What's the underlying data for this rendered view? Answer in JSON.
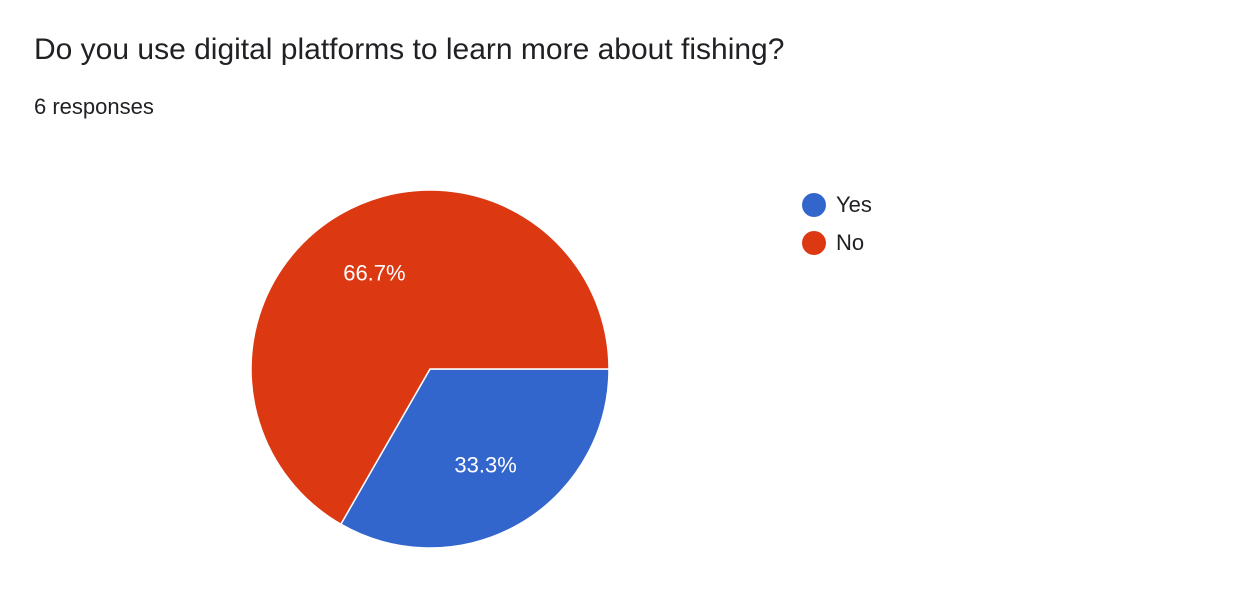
{
  "question": {
    "title": "Do you use digital platforms to learn more about fishing?",
    "responses": "6 responses"
  },
  "chart_data": {
    "type": "pie",
    "categories": [
      "Yes",
      "No"
    ],
    "values": [
      33.3,
      66.7
    ],
    "labels": [
      "33.3%",
      "66.7%"
    ],
    "colors": [
      "#3366cc",
      "#dc3912"
    ],
    "legend_position": "right"
  }
}
